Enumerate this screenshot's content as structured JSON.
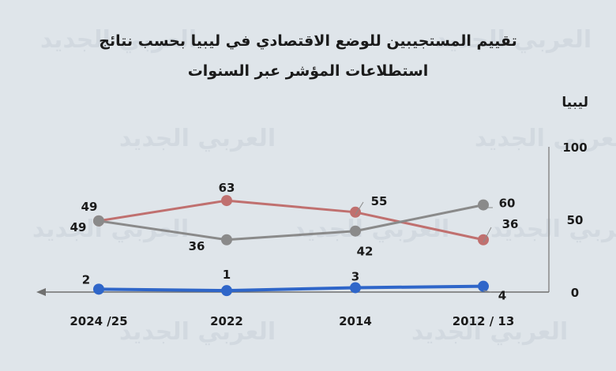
{
  "title_lines": [
    "تقييم المستجيبين للوضع الاقتصادي في ليبيا بحسب نتائج",
    "استطلاعات المؤشر عبر السنوات"
  ],
  "watermark_text": "العربي الجديد",
  "chart_data": {
    "type": "line",
    "title": "تقييم المستجيبين للوضع الاقتصادي في ليبيا بحسب نتائج استطلاعات المؤشر عبر السنوات",
    "ylabel": "ليبيا",
    "xlabel": "",
    "categories": [
      "2012 / 13",
      "2014",
      "2022",
      "2024 /25"
    ],
    "axis_direction": "right-to-left",
    "ylim": [
      0,
      100
    ],
    "yticks": [
      0,
      50,
      100
    ],
    "grid": false,
    "legend": "none",
    "series": [
      {
        "name": "",
        "color": "#c0706f",
        "values": [
          36,
          55,
          63,
          49
        ],
        "labels": [
          "36",
          "55",
          "63",
          "49"
        ]
      },
      {
        "name": "",
        "color": "#8a8a8a",
        "values": [
          60,
          42,
          36,
          49
        ],
        "labels": [
          "60",
          "42",
          "36",
          "49"
        ]
      },
      {
        "name": "",
        "color": "#2f66c9",
        "values": [
          4,
          3,
          1,
          2
        ],
        "labels": [
          "4",
          "3",
          "1",
          "2"
        ]
      }
    ]
  }
}
